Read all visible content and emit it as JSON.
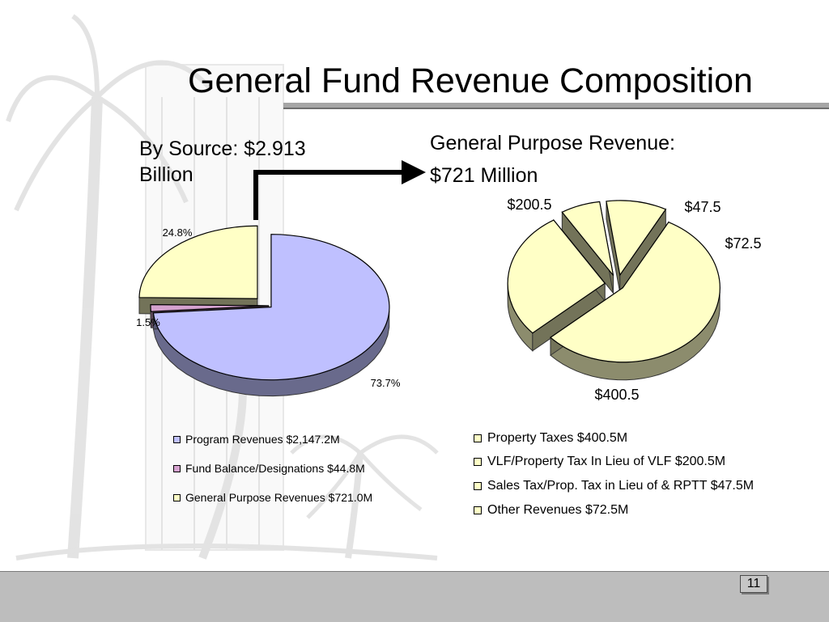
{
  "slide": {
    "title": "General Fund Revenue Composition",
    "page_number": "11"
  },
  "left_chart": {
    "heading": "By Source:  $2.913 Billion"
  },
  "right_chart": {
    "heading_line1": "General Purpose Revenue:",
    "heading_line2": "$721 Million"
  },
  "colors": {
    "program_revenues": "#bfc0ff",
    "fund_balance": "#d5a2cf",
    "general_purpose": "#ffffc6",
    "right_slices": "#ffffc6",
    "title_rule": "#a6a6a6",
    "footer": "#bdbdbd"
  },
  "chart_data": [
    {
      "type": "pie",
      "title": "By Source:  $2.913 Billion",
      "categories": [
        "Program Revenues   $2,147.2M",
        "Fund Balance/Designations  $44.8M",
        "General Purpose Revenues  $721.0M"
      ],
      "values": [
        2147.2,
        44.8,
        721.0
      ],
      "data_labels": [
        "73.7%",
        "1.5%",
        "24.8%"
      ],
      "legend_position": "bottom"
    },
    {
      "type": "pie",
      "title": "General Purpose Revenue: $721 Million",
      "categories": [
        "Property Taxes  $400.5M",
        "VLF/Property Tax In Lieu of VLF  $200.5M",
        "Sales Tax/Prop. Tax in Lieu of & RPTT  $47.5M",
        "Other Revenues  $72.5M"
      ],
      "values": [
        400.5,
        200.5,
        47.5,
        72.5
      ],
      "data_labels": [
        "$400.5",
        "$200.5",
        "$47.5",
        "$72.5"
      ],
      "legend_position": "bottom"
    }
  ]
}
